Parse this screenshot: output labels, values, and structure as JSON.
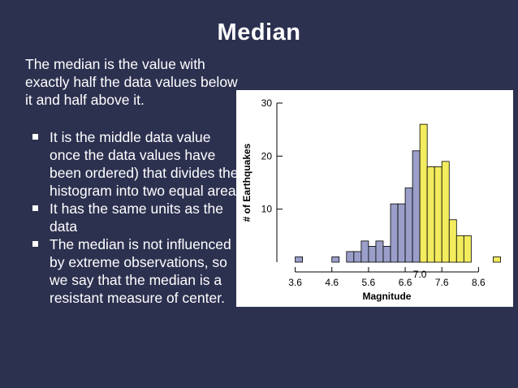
{
  "slide": {
    "title": "Median",
    "intro": "The median is the value with exactly half the data values below it and half above it.",
    "bullets": [
      "It is the middle data value once the data values have been ordered) that divides the histogram into two equal areas",
      "It has the same units as the data",
      "The median is not influenced by extreme observations, so we say that the median is a resistant measure of center."
    ]
  },
  "colors": {
    "background": "#2d3150",
    "below_median": "#9a9ec8",
    "above_median": "#f2ec5e"
  },
  "chart_data": {
    "type": "bar",
    "xlabel": "Magnitude",
    "ylabel": "# of Earthquakes",
    "bin_width": 0.2,
    "bin_starts": [
      3.6,
      3.8,
      4.0,
      4.2,
      4.4,
      4.6,
      4.8,
      5.0,
      5.2,
      5.4,
      5.6,
      5.8,
      6.0,
      6.2,
      6.4,
      6.6,
      6.8,
      7.0,
      7.2,
      7.4,
      7.6,
      7.8,
      8.0,
      8.2,
      8.4,
      8.6,
      8.8,
      9.0
    ],
    "values": [
      1,
      0,
      0,
      0,
      0,
      1,
      0,
      2,
      2,
      4,
      3,
      4,
      3,
      11,
      11,
      14,
      21,
      26,
      18,
      18,
      19,
      8,
      5,
      5,
      0,
      0,
      0,
      1
    ],
    "median": 7.0,
    "median_label": "7.0",
    "x_ticks": [
      3.6,
      4.6,
      5.6,
      6.6,
      7.6,
      8.6
    ],
    "x_tick_labels": [
      "3.6",
      "4.6",
      "5.6",
      "6.6",
      "7.6",
      "8.6"
    ],
    "y_ticks": [
      10,
      20,
      30
    ],
    "y_tick_labels": [
      "10",
      "20",
      "30"
    ],
    "ylim": [
      0,
      30
    ],
    "xlim": [
      3.1,
      9.3
    ],
    "grid": false
  }
}
